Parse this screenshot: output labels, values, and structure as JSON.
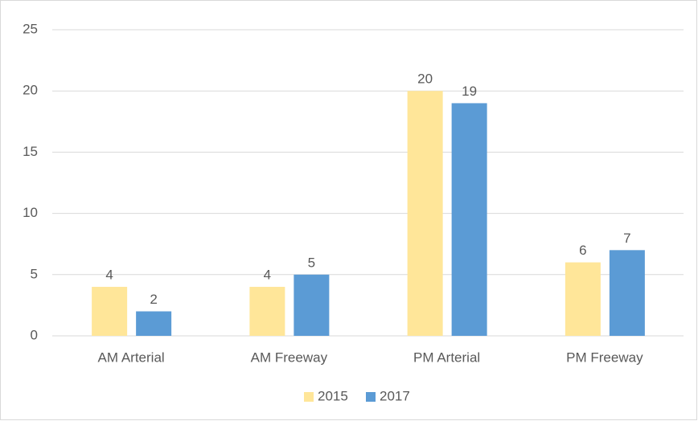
{
  "chart_data": {
    "type": "bar",
    "categories": [
      "AM Arterial",
      "AM Freeway",
      "PM Arterial",
      "PM Freeway"
    ],
    "series": [
      {
        "name": "2015",
        "color": "#ffe699",
        "values": [
          4,
          4,
          20,
          6
        ]
      },
      {
        "name": "2017",
        "color": "#5b9bd5",
        "values": [
          2,
          5,
          19,
          7
        ]
      }
    ],
    "ylim": [
      0,
      25
    ],
    "yticks": [
      0,
      5,
      10,
      15,
      20,
      25
    ],
    "grid": true,
    "legend": "bottom"
  }
}
